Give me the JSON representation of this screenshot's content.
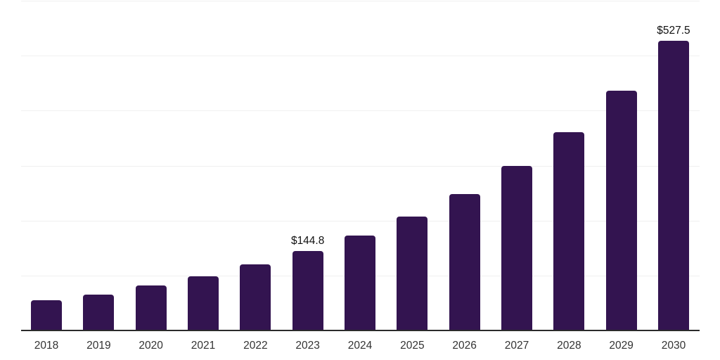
{
  "chart_data": {
    "type": "bar",
    "title": "",
    "xlabel": "",
    "ylabel": "",
    "categories": [
      "2018",
      "2019",
      "2020",
      "2021",
      "2022",
      "2023",
      "2024",
      "2025",
      "2026",
      "2027",
      "2028",
      "2029",
      "2030"
    ],
    "values": [
      55.0,
      65.2,
      81.9,
      98.5,
      120.3,
      144.8,
      172.7,
      207.2,
      248.2,
      299.4,
      360.8,
      436.2,
      527.5
    ],
    "data_labels": [
      "",
      "",
      "",
      "",
      "",
      "$144.8",
      "",
      "",
      "",
      "",
      "",
      "",
      "$527.5"
    ],
    "ylim": [
      0,
      600
    ],
    "gridline_step": 100,
    "grid": "horizontal",
    "legend_position": "none",
    "y_axis_tick_labels_visible": false,
    "colors": {
      "bar": "#331450",
      "gridline": "#f0f0f0",
      "axis_line": "#2b2b2b",
      "tick_label": "#333333",
      "data_label": "#111111",
      "background": "#ffffff"
    }
  }
}
